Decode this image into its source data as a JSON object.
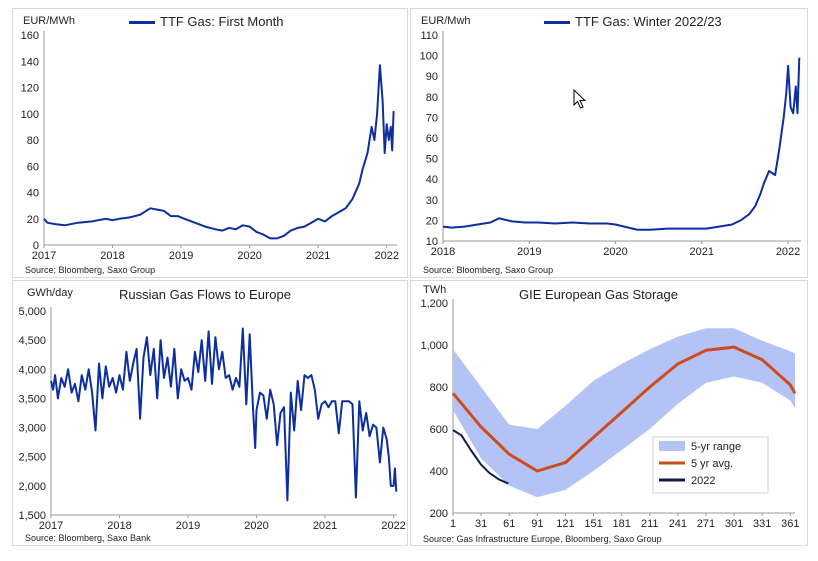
{
  "chart_data": [
    {
      "type": "line",
      "title": "TTF Gas: First Month",
      "ylabel": "EUR/MWh",
      "source": "Source: Bloomberg, Saxo Group",
      "ylim": [
        0,
        160
      ],
      "yticks": [
        0,
        20,
        40,
        60,
        80,
        100,
        120,
        140,
        160
      ],
      "xlim": [
        2017,
        2022.15
      ],
      "xticks": [
        2017,
        2018,
        2019,
        2020,
        2021,
        2022
      ],
      "xticklabels": [
        "2017",
        "2018",
        "2019",
        "2020",
        "2021",
        "2022"
      ],
      "color": "#0d2ea0",
      "series": [
        {
          "name": "TTF Gas: First Month",
          "x": [
            2017.0,
            2017.05,
            2017.15,
            2017.3,
            2017.5,
            2017.7,
            2017.9,
            2018.0,
            2018.1,
            2018.25,
            2018.4,
            2018.55,
            2018.65,
            2018.75,
            2018.85,
            2018.95,
            2019.05,
            2019.2,
            2019.35,
            2019.5,
            2019.6,
            2019.7,
            2019.8,
            2019.9,
            2020.0,
            2020.1,
            2020.2,
            2020.3,
            2020.4,
            2020.5,
            2020.6,
            2020.7,
            2020.8,
            2020.9,
            2021.0,
            2021.1,
            2021.2,
            2021.3,
            2021.4,
            2021.5,
            2021.6,
            2021.65,
            2021.72,
            2021.78,
            2021.82,
            2021.86,
            2021.9,
            2021.94,
            2021.97,
            2022.0,
            2022.03,
            2022.06,
            2022.08,
            2022.1
          ],
          "y": [
            20,
            17,
            16,
            15,
            17,
            18,
            20,
            19,
            20,
            21,
            23,
            28,
            27,
            26,
            22,
            22,
            20,
            17,
            14,
            12,
            11,
            13,
            12,
            15,
            14,
            10,
            8,
            5,
            5,
            7,
            11,
            13,
            14,
            17,
            20,
            18,
            22,
            25,
            28,
            35,
            47,
            58,
            70,
            90,
            80,
            100,
            137,
            110,
            70,
            92,
            80,
            90,
            72,
            102
          ]
        }
      ]
    },
    {
      "type": "line",
      "title": "TTF Gas: Winter 2022/23",
      "ylabel": "EUR/Mwh",
      "source": "Source: Bloomberg, Saxo Group",
      "ylim": [
        10,
        110
      ],
      "yticks": [
        10,
        20,
        30,
        40,
        50,
        60,
        70,
        80,
        90,
        100,
        110
      ],
      "xlim": [
        2018,
        2022.15
      ],
      "xticks": [
        2018,
        2019,
        2020,
        2021,
        2022
      ],
      "xticklabels": [
        "2018",
        "2019",
        "2020",
        "2021",
        "2022"
      ],
      "color": "#0d2ea0",
      "series": [
        {
          "name": "TTF Gas: Winter 2022/23",
          "x": [
            2018.0,
            2018.1,
            2018.25,
            2018.4,
            2018.55,
            2018.65,
            2018.8,
            2018.95,
            2019.1,
            2019.3,
            2019.5,
            2019.7,
            2019.9,
            2020.0,
            2020.1,
            2020.25,
            2020.4,
            2020.6,
            2020.8,
            2020.95,
            2021.05,
            2021.2,
            2021.35,
            2021.45,
            2021.55,
            2021.62,
            2021.68,
            2021.72,
            2021.78,
            2021.85,
            2021.9,
            2021.95,
            2021.98,
            2022.0,
            2022.03,
            2022.06,
            2022.09,
            2022.11,
            2022.13
          ],
          "y": [
            17,
            16.5,
            17,
            18,
            19,
            21,
            19.5,
            19,
            19,
            18.5,
            19,
            18.5,
            18.5,
            18,
            17,
            15.5,
            15.5,
            16,
            16,
            16,
            16,
            17,
            18,
            20,
            23,
            27,
            33,
            38,
            44,
            42,
            55,
            70,
            82,
            95,
            75,
            72,
            85,
            72,
            99
          ]
        }
      ]
    },
    {
      "type": "line",
      "title": "Russian  Gas Flows to Europe",
      "ylabel": "GWh/day",
      "source": "Source: Bloomberg, Saxo Bank",
      "ylim": [
        1500,
        5000
      ],
      "yticks": [
        1500,
        2000,
        2500,
        3000,
        3500,
        4000,
        4500,
        5000
      ],
      "yticklabels": [
        "1,500",
        "2,000",
        "2,500",
        "3,000",
        "3,500",
        "4,000",
        "4,500",
        "5,000"
      ],
      "xlim": [
        2017,
        2022.05
      ],
      "xticks": [
        2017,
        2018,
        2019,
        2020,
        2021,
        2022
      ],
      "xticklabels": [
        "2017",
        "2018",
        "2019",
        "2020",
        "2021",
        "2022"
      ],
      "color": "#0d2ea0",
      "series": [
        {
          "name": "Russian  Gas Flows to Europe",
          "x": [
            2017.0,
            2017.03,
            2017.06,
            2017.1,
            2017.15,
            2017.2,
            2017.25,
            2017.3,
            2017.35,
            2017.4,
            2017.45,
            2017.5,
            2017.55,
            2017.6,
            2017.65,
            2017.7,
            2017.75,
            2017.8,
            2017.85,
            2017.9,
            2017.95,
            2018.0,
            2018.05,
            2018.1,
            2018.15,
            2018.2,
            2018.25,
            2018.3,
            2018.35,
            2018.4,
            2018.45,
            2018.5,
            2018.55,
            2018.6,
            2018.65,
            2018.7,
            2018.75,
            2018.8,
            2018.85,
            2018.9,
            2018.95,
            2019.0,
            2019.05,
            2019.1,
            2019.15,
            2019.2,
            2019.25,
            2019.3,
            2019.35,
            2019.4,
            2019.45,
            2019.5,
            2019.55,
            2019.6,
            2019.65,
            2019.7,
            2019.75,
            2019.8,
            2019.85,
            2019.9,
            2019.95,
            2019.98,
            2020.0,
            2020.05,
            2020.1,
            2020.15,
            2020.2,
            2020.25,
            2020.3,
            2020.35,
            2020.4,
            2020.45,
            2020.5,
            2020.55,
            2020.6,
            2020.65,
            2020.7,
            2020.75,
            2020.8,
            2020.85,
            2020.9,
            2020.95,
            2021.0,
            2021.05,
            2021.1,
            2021.15,
            2021.2,
            2021.25,
            2021.3,
            2021.35,
            2021.4,
            2021.45,
            2021.5,
            2021.55,
            2021.6,
            2021.65,
            2021.7,
            2021.75,
            2021.8,
            2021.85,
            2021.9,
            2021.93,
            2021.96,
            2022.0,
            2022.02,
            2022.04
          ],
          "y": [
            3800,
            3650,
            3900,
            3500,
            3850,
            3700,
            4000,
            3600,
            3750,
            3450,
            3900,
            3650,
            4000,
            3600,
            2950,
            4100,
            3500,
            4050,
            3700,
            3850,
            3600,
            3900,
            3650,
            4300,
            3800,
            4100,
            4350,
            3150,
            4200,
            4550,
            3900,
            4350,
            3500,
            4500,
            3850,
            4200,
            3700,
            4350,
            3500,
            4000,
            3800,
            3850,
            3650,
            4300,
            3950,
            4500,
            3800,
            4650,
            3750,
            4550,
            4000,
            4300,
            3850,
            3900,
            3650,
            3850,
            3700,
            4700,
            3400,
            4600,
            3300,
            2650,
            3300,
            3600,
            3550,
            3150,
            3650,
            3400,
            2700,
            3250,
            3350,
            1750,
            3600,
            2950,
            3800,
            3300,
            3900,
            3850,
            3900,
            3650,
            3150,
            3400,
            3450,
            3350,
            3450,
            3450,
            2900,
            3450,
            3450,
            3450,
            3400,
            1800,
            3450,
            2950,
            3250,
            2850,
            3050,
            3000,
            2400,
            3000,
            2800,
            2500,
            2000,
            2000,
            2300,
            1900
          ]
        }
      ]
    },
    {
      "type": "line",
      "title": "GIE European  Gas Storage",
      "ylabel": "TWh",
      "source": "Source: Gas Infrastructure Europe, Bloomberg, Saxo Group",
      "ylim": [
        200,
        1200
      ],
      "yticks": [
        200,
        400,
        600,
        800,
        1000,
        1200
      ],
      "yticklabels": [
        "200",
        "400",
        "600",
        "800",
        "1,000",
        "1,200"
      ],
      "xlim": [
        1,
        366
      ],
      "xticks": [
        1,
        31,
        61,
        91,
        121,
        151,
        181,
        211,
        241,
        271,
        301,
        331,
        361
      ],
      "xticklabels": [
        "1",
        "31",
        "61",
        "91",
        "121",
        "151",
        "181",
        "211",
        "241",
        "271",
        "301",
        "331",
        "361"
      ],
      "legend_position": "right",
      "x": [
        1,
        31,
        61,
        91,
        121,
        151,
        181,
        211,
        241,
        271,
        301,
        331,
        361,
        366
      ],
      "series": [
        {
          "name": "5-yr range",
          "kind": "band",
          "color": "#b4c3f5",
          "lower": [
            690,
            460,
            330,
            275,
            310,
            400,
            500,
            600,
            720,
            820,
            850,
            820,
            735,
            700
          ],
          "upper": [
            980,
            800,
            620,
            600,
            710,
            830,
            910,
            980,
            1040,
            1080,
            1080,
            1020,
            970,
            960
          ]
        },
        {
          "name": "5 yr avg.",
          "kind": "line",
          "color": "#cf4a1d",
          "values": [
            770,
            610,
            480,
            400,
            440,
            560,
            680,
            800,
            910,
            975,
            990,
            930,
            810,
            770
          ]
        },
        {
          "name": "2022",
          "kind": "line",
          "color": "#111b4d",
          "x": [
            1,
            10,
            20,
            31,
            40,
            50,
            60
          ],
          "values": [
            595,
            570,
            500,
            430,
            390,
            360,
            340
          ]
        }
      ]
    }
  ]
}
